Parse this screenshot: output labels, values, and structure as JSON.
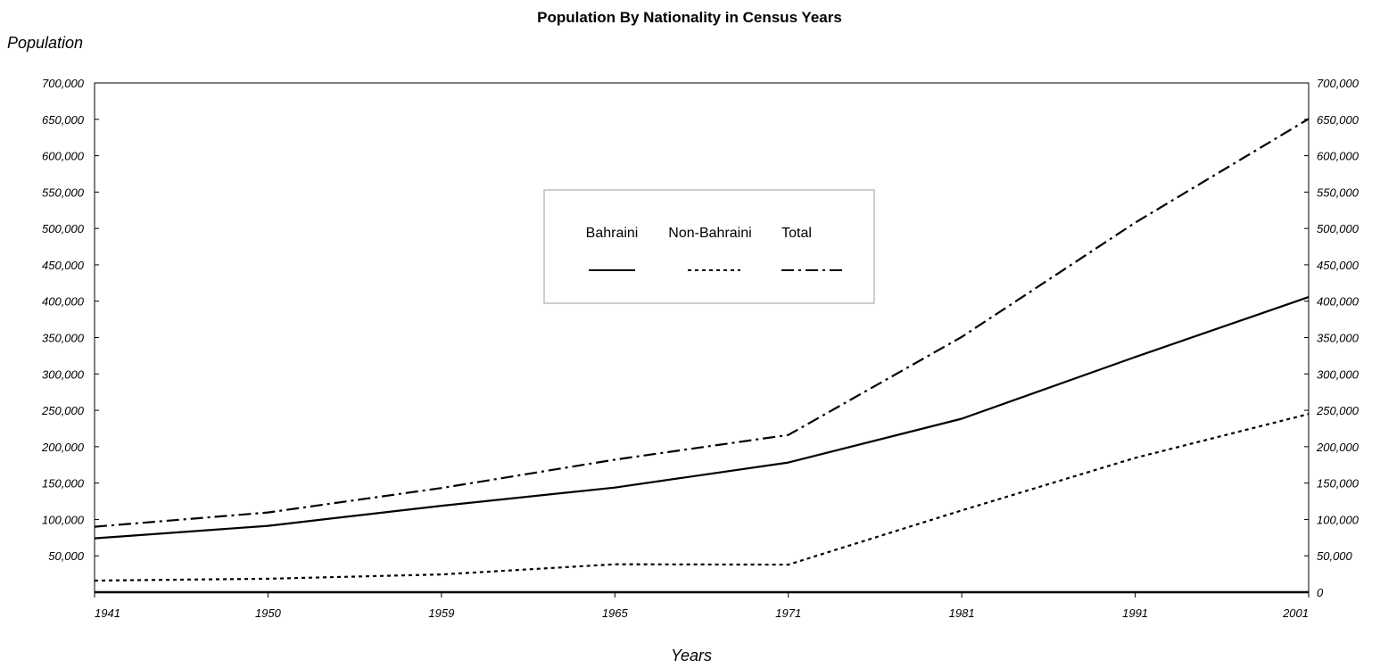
{
  "chart_data": {
    "type": "line",
    "title": "Population By Nationality in Census Years",
    "ylabel": "Population",
    "xlabel": "Years",
    "categories": [
      "1941",
      "1950",
      "1959",
      "1965",
      "1971",
      "1981",
      "1991",
      "2001"
    ],
    "y_ticks_left": [
      "700,000",
      "650,000",
      "600,000",
      "550,000",
      "500,000",
      "450,000",
      "400,000",
      "350,000",
      "300,000",
      "250,000",
      "200,000",
      "150,000",
      "100,000",
      "50,000"
    ],
    "y_ticks_right": [
      "700,000",
      "650,000",
      "600,000",
      "550,000",
      "500,000",
      "450,000",
      "400,000",
      "350,000",
      "300,000",
      "250,000",
      "200,000",
      "150,000",
      "100,000",
      "50,000",
      "0"
    ],
    "ylim": [
      0,
      700000
    ],
    "grid": false,
    "legend_position": "top-center",
    "series": [
      {
        "name": "Bahraini",
        "style": "solid",
        "values": [
          74040,
          91179,
          118734,
          143814,
          178193,
          238420,
          323305,
          405667
        ]
      },
      {
        "name": "Non-Bahraini",
        "style": "dashed",
        "values": [
          15930,
          18471,
          24401,
          38389,
          37885,
          112378,
          184681,
          244937
        ]
      },
      {
        "name": "Total",
        "style": "dash-dot",
        "values": [
          89970,
          109650,
          143135,
          182203,
          216078,
          350798,
          507986,
          650604
        ]
      }
    ]
  }
}
